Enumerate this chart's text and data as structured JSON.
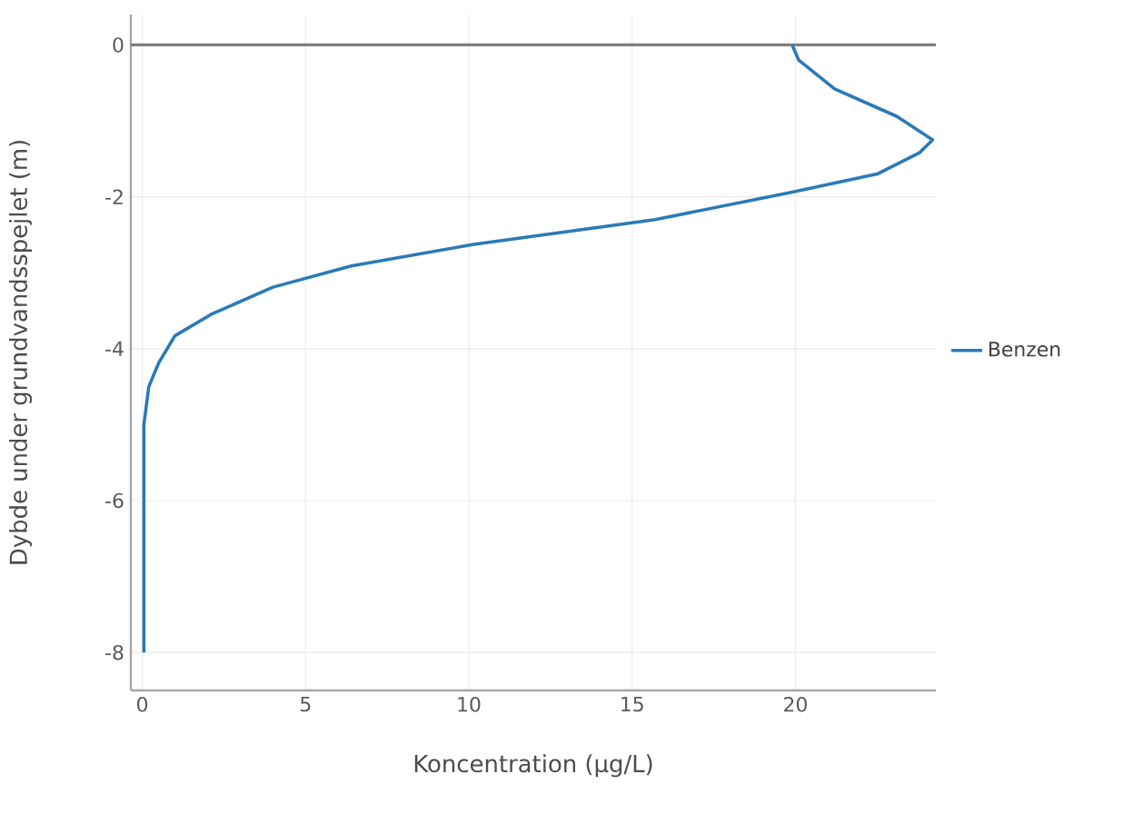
{
  "chart_data": {
    "type": "line",
    "xlabel": "Koncentration (µg/L)",
    "ylabel": "Dybde under grundvandsspejlet (m)",
    "series": [
      {
        "name": "Benzen",
        "color": "#2a7ab8",
        "x": [
          19.9,
          20.1,
          21.2,
          23.1,
          24.2,
          23.8,
          22.5,
          19.9,
          15.7,
          10.1,
          6.4,
          4.0,
          2.1,
          1.0,
          0.5,
          0.2,
          0.05,
          0.05
        ],
        "values": [
          0,
          -0.2,
          -0.58,
          -0.94,
          -1.25,
          -1.42,
          -1.7,
          -1.94,
          -2.3,
          -2.63,
          -2.91,
          -3.19,
          -3.55,
          -3.83,
          -4.19,
          -4.5,
          -5,
          -8
        ]
      }
    ],
    "xlim": [
      -0.35,
      24.3
    ],
    "ylim": [
      -8.5,
      0.4
    ],
    "xticks": [
      0,
      5,
      10,
      15,
      20
    ],
    "yticks": [
      0,
      -2,
      -4,
      -6,
      -8
    ],
    "ref_lines": [
      {
        "axis": "y",
        "value": 0,
        "color": "#7f7f7f"
      }
    ],
    "grid": true,
    "legend": "right",
    "marker": "none",
    "line_style": "solid"
  }
}
